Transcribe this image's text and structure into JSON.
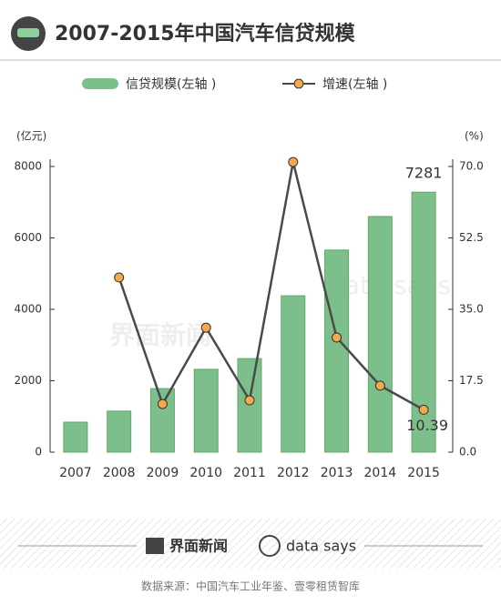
{
  "chart_data": {
    "type": "bar_line",
    "title": "2007-2015年中国汽车信贷规模",
    "categories": [
      "2007",
      "2008",
      "2009",
      "2010",
      "2011",
      "2012",
      "2013",
      "2014",
      "2015"
    ],
    "series": [
      {
        "name": "信贷规模(左轴 )",
        "color": "#7dbf8a",
        "values": [
          840,
          1150,
          1780,
          2320,
          2620,
          4380,
          5660,
          6600,
          7281
        ]
      },
      {
        "name": "增速(左轴 )",
        "color": "#4a4a4a",
        "axis": "y2",
        "values": [
          null,
          42.8,
          11.8,
          30.5,
          12.7,
          71.1,
          28.1,
          16.3,
          10.39
        ]
      }
    ],
    "y_label": "(亿元)",
    "y2_label": "(%)",
    "ylim": [
      0,
      8000
    ],
    "yticks": [
      0,
      2000,
      4000,
      6000,
      8000
    ],
    "y2lim": [
      0,
      70
    ],
    "y2ticks": [
      {
        "value": 0,
        "label": "0.0"
      },
      17.5,
      {
        "value": 35,
        "label": "35.0"
      },
      52.5,
      {
        "value": 70,
        "label": "70.0"
      }
    ],
    "marker_color": "#f5a94a",
    "footer": {
      "brand": "界面新闻",
      "brand2": "data says",
      "source": "数据来源：中国汽车工业年鉴、壹零租赁智库"
    }
  }
}
